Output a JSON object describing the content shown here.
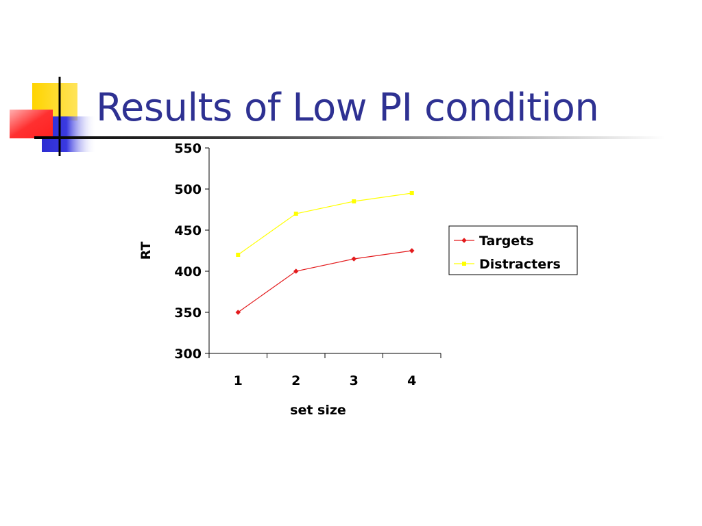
{
  "slide": {
    "title": "Results of Low PI condition"
  },
  "decoration": {
    "colors": {
      "yellow": "#ffd400",
      "blue": "#2d2dd2",
      "red": "#ff2a2a",
      "title": "#2e3192"
    }
  },
  "chart_data": {
    "type": "line",
    "title": "",
    "xlabel": "set size",
    "ylabel": "RT",
    "categories": [
      "1",
      "2",
      "3",
      "4"
    ],
    "ylim": [
      300,
      550
    ],
    "yticks": [
      300,
      350,
      400,
      450,
      500,
      550
    ],
    "grid": false,
    "legend": {
      "position": "right"
    },
    "series": [
      {
        "name": "Targets",
        "color": "#e31a1c",
        "marker": "diamond",
        "values": [
          350,
          400,
          415,
          425
        ]
      },
      {
        "name": "Distracters",
        "color": "#ffff00",
        "marker": "square",
        "values": [
          420,
          470,
          485,
          495
        ]
      }
    ]
  }
}
